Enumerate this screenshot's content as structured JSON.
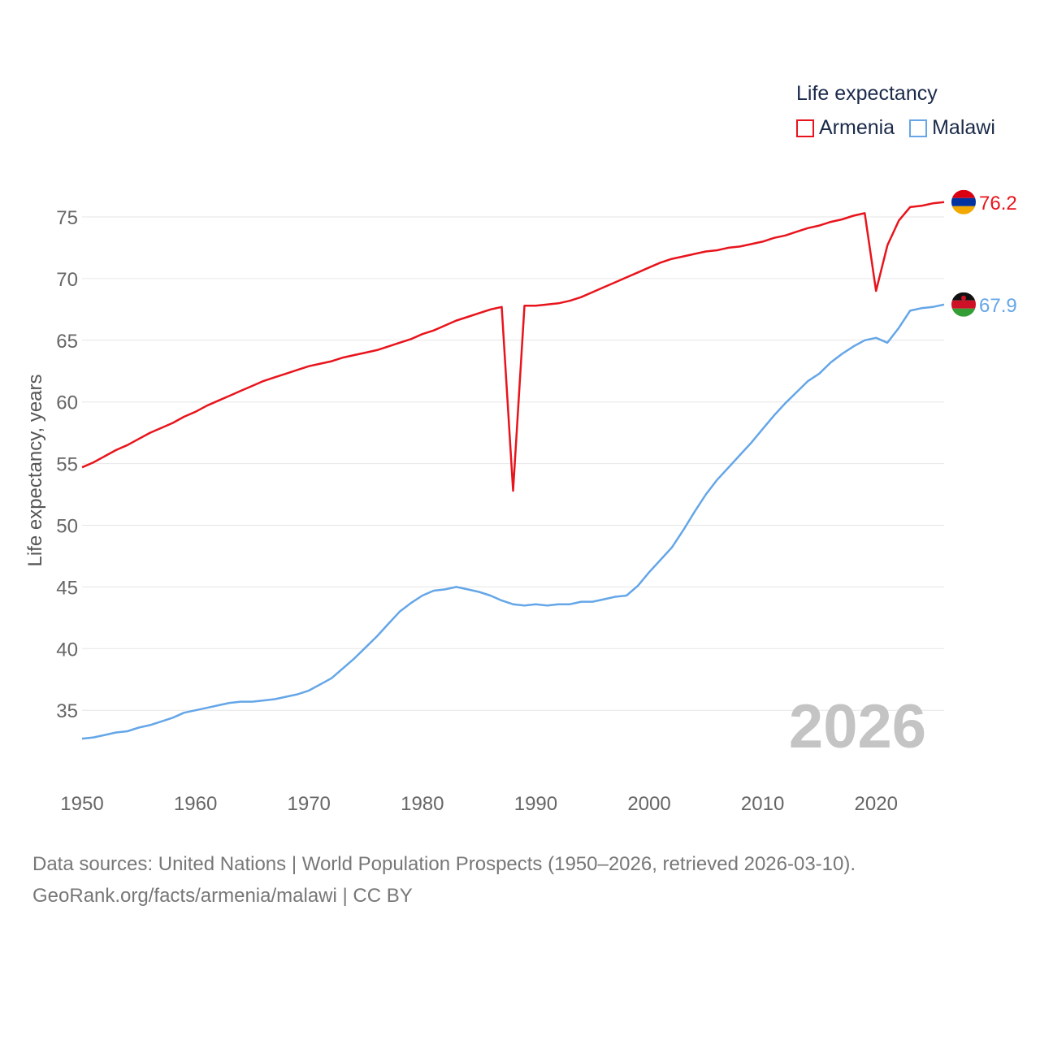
{
  "chart_data": {
    "type": "line",
    "legend_title": "Life expectancy",
    "ylabel": "Life expectancy, years",
    "xlabel": "",
    "xlim": [
      1950,
      2026
    ],
    "ylim": [
      31,
      78
    ],
    "x_ticks": [
      1950,
      1960,
      1970,
      1980,
      1990,
      2000,
      2010,
      2020
    ],
    "y_ticks": [
      35,
      40,
      45,
      50,
      55,
      60,
      65,
      70,
      75
    ],
    "current_year": "2026",
    "x": [
      1950,
      1951,
      1952,
      1953,
      1954,
      1955,
      1956,
      1957,
      1958,
      1959,
      1960,
      1961,
      1962,
      1963,
      1964,
      1965,
      1966,
      1967,
      1968,
      1969,
      1970,
      1971,
      1972,
      1973,
      1974,
      1975,
      1976,
      1977,
      1978,
      1979,
      1980,
      1981,
      1982,
      1983,
      1984,
      1985,
      1986,
      1987,
      1988,
      1989,
      1990,
      1991,
      1992,
      1993,
      1994,
      1995,
      1996,
      1997,
      1998,
      1999,
      2000,
      2001,
      2002,
      2003,
      2004,
      2005,
      2006,
      2007,
      2008,
      2009,
      2010,
      2011,
      2012,
      2013,
      2014,
      2015,
      2016,
      2017,
      2018,
      2019,
      2020,
      2021,
      2022,
      2023,
      2024,
      2025,
      2026
    ],
    "series": [
      {
        "name": "Armenia",
        "color": "#e8141c",
        "end_label": "76.2",
        "values": [
          54.7,
          55.1,
          55.6,
          56.1,
          56.5,
          57.0,
          57.5,
          57.9,
          58.3,
          58.8,
          59.2,
          59.7,
          60.1,
          60.5,
          60.9,
          61.3,
          61.7,
          62.0,
          62.3,
          62.6,
          62.9,
          63.1,
          63.3,
          63.6,
          63.8,
          64.0,
          64.2,
          64.5,
          64.8,
          65.1,
          65.5,
          65.8,
          66.2,
          66.6,
          66.9,
          67.2,
          67.5,
          67.7,
          52.8,
          67.8,
          67.8,
          67.9,
          68.0,
          68.2,
          68.5,
          68.9,
          69.3,
          69.7,
          70.1,
          70.5,
          70.9,
          71.3,
          71.6,
          71.8,
          72.0,
          72.2,
          72.3,
          72.5,
          72.6,
          72.8,
          73.0,
          73.3,
          73.5,
          73.8,
          74.1,
          74.3,
          74.6,
          74.8,
          75.1,
          75.3,
          69.0,
          72.7,
          74.7,
          75.8,
          75.9,
          76.1,
          76.2
        ]
      },
      {
        "name": "Malawi",
        "color": "#64a6e8",
        "end_label": "67.9",
        "values": [
          32.7,
          32.8,
          33.0,
          33.2,
          33.3,
          33.6,
          33.8,
          34.1,
          34.4,
          34.8,
          35.0,
          35.2,
          35.4,
          35.6,
          35.7,
          35.7,
          35.8,
          35.9,
          36.1,
          36.3,
          36.6,
          37.1,
          37.6,
          38.4,
          39.2,
          40.1,
          41.0,
          42.0,
          43.0,
          43.7,
          44.3,
          44.7,
          44.8,
          45.0,
          44.8,
          44.6,
          44.3,
          43.9,
          43.6,
          43.5,
          43.6,
          43.5,
          43.6,
          43.6,
          43.8,
          43.8,
          44.0,
          44.2,
          44.3,
          45.1,
          46.2,
          47.2,
          48.2,
          49.6,
          51.1,
          52.5,
          53.7,
          54.7,
          55.7,
          56.7,
          57.8,
          58.9,
          59.9,
          60.8,
          61.7,
          62.3,
          63.2,
          63.9,
          64.5,
          65.0,
          65.2,
          64.8,
          66.0,
          67.4,
          67.6,
          67.7,
          67.9
        ]
      }
    ]
  },
  "source": {
    "line1": "Data sources: United Nations | World Population Prospects (1950–2026, retrieved 2026-03-10).",
    "line2": "GeoRank.org/facts/armenia/malawi | CC BY"
  }
}
